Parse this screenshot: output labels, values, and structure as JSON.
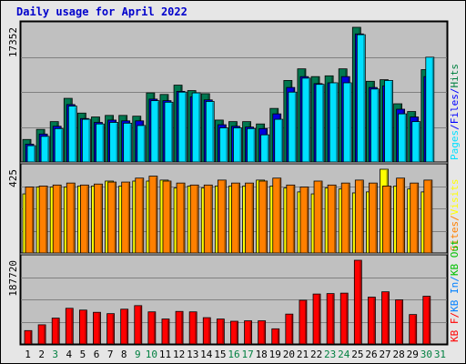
{
  "title": "Daily usage for April 2022",
  "colors": {
    "hits": "#008040",
    "files": "#0000ff",
    "pages": "#00e0ff",
    "visits": "#ffff00",
    "sites": "#ff8000",
    "kb_in": "#0080ff",
    "kb_out": "#00c000",
    "kb_f": "#ff0000",
    "label_alt": "#008040"
  },
  "chart_data": [
    {
      "type": "bar",
      "ylabel_max": "17352",
      "ymax": 17352,
      "grid": true,
      "side_labels": [
        {
          "text": "Pages",
          "color_key": "pages"
        },
        {
          "text": "/",
          "color_key": "files"
        },
        {
          "text": "Files",
          "color_key": "files"
        },
        {
          "text": "/",
          "color_key": "files"
        },
        {
          "text": "Hits",
          "color_key": "hits"
        }
      ],
      "categories": [
        "1",
        "2",
        "3",
        "4",
        "5",
        "6",
        "7",
        "8",
        "9",
        "10",
        "11",
        "12",
        "13",
        "14",
        "15",
        "16",
        "17",
        "18",
        "19",
        "20",
        "21",
        "22",
        "23",
        "24",
        "25",
        "26",
        "27",
        "28",
        "29",
        "30",
        "31"
      ],
      "series": [
        {
          "name": "Hits",
          "values": [
            2900,
            4200,
            5200,
            8200,
            6300,
            5800,
            6000,
            6000,
            5900,
            8900,
            8700,
            9900,
            9200,
            8800,
            5400,
            5200,
            5200,
            4900,
            6900,
            10500,
            12000,
            11000,
            11100,
            12000,
            17352,
            10400,
            10600,
            7500,
            6500,
            11900,
            null
          ]
        },
        {
          "name": "Files",
          "values": [
            2300,
            3600,
            4600,
            7400,
            5600,
            5100,
            5400,
            5300,
            5300,
            8100,
            7900,
            9100,
            8400,
            8000,
            4800,
            4600,
            4500,
            4300,
            6200,
            9600,
            11000,
            10100,
            10200,
            11000,
            16500,
            9600,
            9800,
            6800,
            5800,
            11000,
            null
          ]
        },
        {
          "name": "Pages",
          "values": [
            2100,
            3300,
            4300,
            7200,
            5500,
            4900,
            5100,
            5000,
            4700,
            7900,
            7700,
            9000,
            8900,
            7800,
            4400,
            4400,
            4300,
            3500,
            5500,
            9000,
            10800,
            10000,
            10200,
            10200,
            16400,
            9400,
            10500,
            6200,
            5200,
            13500,
            null
          ]
        }
      ]
    },
    {
      "type": "bar",
      "ylabel_max": "425",
      "ymax": 425,
      "grid": true,
      "side_labels": [
        {
          "text": "Sites",
          "color_key": "sites"
        },
        {
          "text": "/",
          "color_key": "sites"
        },
        {
          "text": "Visits",
          "color_key": "visits"
        }
      ],
      "categories": [
        "1",
        "2",
        "3",
        "4",
        "5",
        "6",
        "7",
        "8",
        "9",
        "10",
        "11",
        "12",
        "13",
        "14",
        "15",
        "16",
        "17",
        "18",
        "19",
        "20",
        "21",
        "22",
        "23",
        "24",
        "25",
        "26",
        "27",
        "28",
        "29",
        "30",
        "31"
      ],
      "series": [
        {
          "name": "Visits",
          "values": [
            300,
            335,
            335,
            335,
            340,
            340,
            365,
            340,
            365,
            365,
            370,
            330,
            340,
            330,
            340,
            340,
            340,
            370,
            340,
            330,
            310,
            300,
            330,
            325,
            305,
            310,
            425,
            340,
            325,
            310,
            null
          ]
        },
        {
          "name": "Sites",
          "values": [
            335,
            340,
            345,
            355,
            345,
            350,
            360,
            360,
            380,
            390,
            365,
            355,
            345,
            345,
            370,
            355,
            355,
            365,
            380,
            345,
            335,
            365,
            345,
            355,
            370,
            355,
            340,
            380,
            355,
            370,
            null
          ]
        }
      ]
    },
    {
      "type": "bar",
      "ylabel_max": "187720",
      "ymax": 187720,
      "grid": true,
      "side_labels": [
        {
          "text": "KB F",
          "color_key": "kb_f"
        },
        {
          "text": "/",
          "color_key": "kb_f"
        },
        {
          "text": "KB In",
          "color_key": "kb_in"
        },
        {
          "text": "/",
          "color_key": "kb_in"
        },
        {
          "text": "KB Out",
          "color_key": "kb_out"
        }
      ],
      "categories": [
        "1",
        "2",
        "3",
        "4",
        "5",
        "6",
        "7",
        "8",
        "9",
        "10",
        "11",
        "12",
        "13",
        "14",
        "15",
        "16",
        "17",
        "18",
        "19",
        "20",
        "21",
        "22",
        "23",
        "24",
        "25",
        "26",
        "27",
        "28",
        "29",
        "30",
        "31"
      ],
      "series": [
        {
          "name": "KB F",
          "values": [
            30000,
            43000,
            58000,
            80000,
            76000,
            71000,
            68000,
            78000,
            86000,
            72000,
            56000,
            73000,
            72000,
            59000,
            56000,
            51000,
            52000,
            52000,
            34000,
            67000,
            98000,
            112000,
            113000,
            114000,
            187720,
            105000,
            117000,
            99000,
            66000,
            107000,
            null
          ]
        }
      ]
    }
  ],
  "x_labels": [
    {
      "text": "1",
      "alt": false
    },
    {
      "text": "2",
      "alt": false
    },
    {
      "text": "3",
      "alt": true
    },
    {
      "text": "4",
      "alt": false
    },
    {
      "text": "5",
      "alt": false
    },
    {
      "text": "6",
      "alt": false
    },
    {
      "text": "7",
      "alt": false
    },
    {
      "text": "8",
      "alt": false
    },
    {
      "text": "9",
      "alt": true
    },
    {
      "text": "10",
      "alt": true
    },
    {
      "text": "11",
      "alt": false
    },
    {
      "text": "12",
      "alt": false
    },
    {
      "text": "13",
      "alt": false
    },
    {
      "text": "14",
      "alt": false
    },
    {
      "text": "15",
      "alt": false
    },
    {
      "text": "16",
      "alt": true
    },
    {
      "text": "17",
      "alt": true
    },
    {
      "text": "18",
      "alt": false
    },
    {
      "text": "19",
      "alt": false
    },
    {
      "text": "20",
      "alt": false
    },
    {
      "text": "21",
      "alt": false
    },
    {
      "text": "22",
      "alt": false
    },
    {
      "text": "23",
      "alt": true
    },
    {
      "text": "24",
      "alt": true
    },
    {
      "text": "25",
      "alt": false
    },
    {
      "text": "26",
      "alt": false
    },
    {
      "text": "27",
      "alt": false
    },
    {
      "text": "28",
      "alt": false
    },
    {
      "text": "29",
      "alt": false
    },
    {
      "text": "30",
      "alt": true
    },
    {
      "text": "31",
      "alt": true
    }
  ]
}
